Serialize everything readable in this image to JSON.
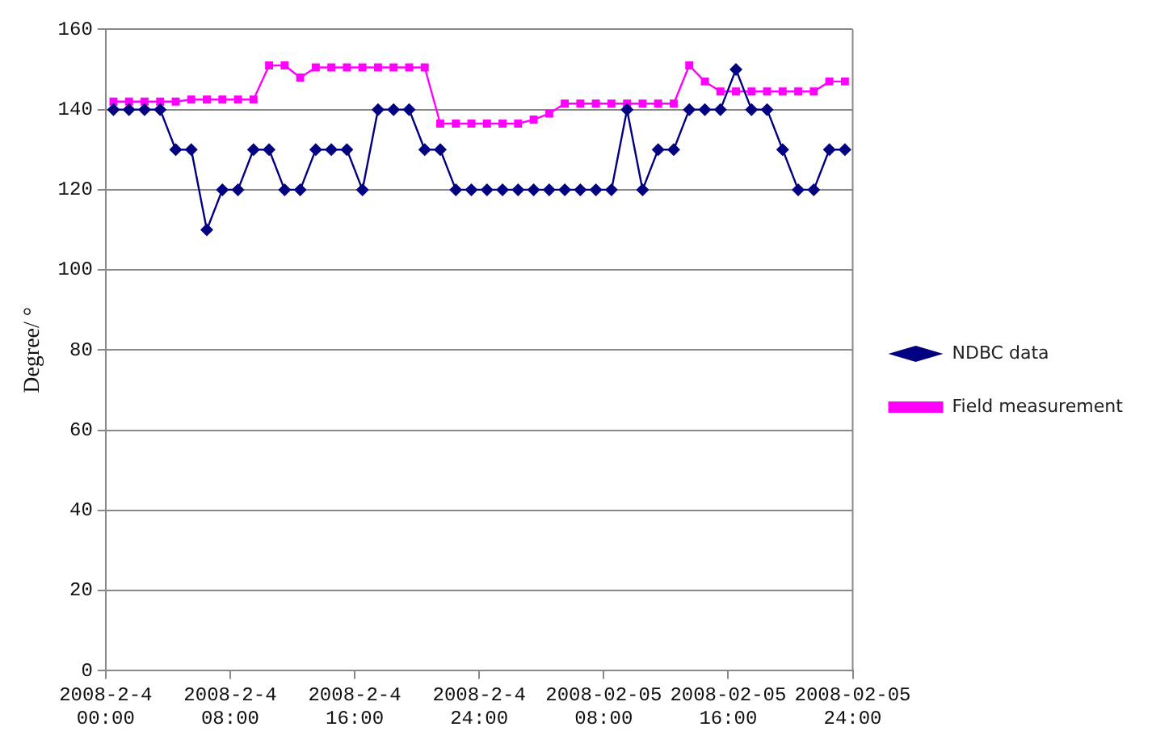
{
  "chart_data": {
    "type": "line",
    "ylabel": "Degree/ °",
    "xlim": [
      "2008-02-04T00:00",
      "2008-02-06T00:00"
    ],
    "xticks": [
      {
        "value": "2008-02-04T00:00",
        "label": "2008-2-4 00:00"
      },
      {
        "value": "2008-02-04T08:00",
        "label": "2008-2-4 08:00"
      },
      {
        "value": "2008-02-04T16:00",
        "label": "2008-2-4 16:00"
      },
      {
        "value": "2008-02-05T00:00",
        "label": "2008-2-4 24:00"
      },
      {
        "value": "2008-02-05T08:00",
        "label": "2008-02-05 08:00"
      },
      {
        "value": "2008-02-05T16:00",
        "label": "2008-02-05 16:00"
      },
      {
        "value": "2008-02-06T00:00",
        "label": "2008-02-05 24:00"
      }
    ],
    "ylim": [
      0,
      160
    ],
    "yticks": [
      0,
      20,
      40,
      60,
      80,
      100,
      120,
      140,
      160
    ],
    "grid": "y",
    "legend": "right",
    "x": [
      "2008-02-04T00:30",
      "2008-02-04T01:30",
      "2008-02-04T02:30",
      "2008-02-04T03:30",
      "2008-02-04T04:30",
      "2008-02-04T05:30",
      "2008-02-04T06:30",
      "2008-02-04T07:30",
      "2008-02-04T08:30",
      "2008-02-04T09:30",
      "2008-02-04T10:30",
      "2008-02-04T11:30",
      "2008-02-04T12:30",
      "2008-02-04T13:30",
      "2008-02-04T14:30",
      "2008-02-04T15:30",
      "2008-02-04T16:30",
      "2008-02-04T17:30",
      "2008-02-04T18:30",
      "2008-02-04T19:30",
      "2008-02-04T20:30",
      "2008-02-04T21:30",
      "2008-02-04T22:30",
      "2008-02-04T23:30",
      "2008-02-05T00:30",
      "2008-02-05T01:30",
      "2008-02-05T02:30",
      "2008-02-05T03:30",
      "2008-02-05T04:30",
      "2008-02-05T05:30",
      "2008-02-05T06:30",
      "2008-02-05T07:30",
      "2008-02-05T08:30",
      "2008-02-05T09:30",
      "2008-02-05T10:30",
      "2008-02-05T11:30",
      "2008-02-05T12:30",
      "2008-02-05T13:30",
      "2008-02-05T14:30",
      "2008-02-05T15:30",
      "2008-02-05T16:30",
      "2008-02-05T17:30",
      "2008-02-05T18:30",
      "2008-02-05T19:30",
      "2008-02-05T20:30",
      "2008-02-05T21:30",
      "2008-02-05T22:30",
      "2008-02-05T23:30"
    ],
    "series": [
      {
        "name": "NDBC data",
        "color": "#000080",
        "marker": "diamond",
        "values": [
          140,
          140,
          140,
          140,
          130,
          130,
          110,
          120,
          120,
          130,
          130,
          120,
          120,
          130,
          130,
          130,
          120,
          140,
          140,
          140,
          130,
          130,
          120,
          120,
          120,
          120,
          120,
          120,
          120,
          120,
          120,
          120,
          120,
          140,
          120,
          130,
          130,
          140,
          140,
          140,
          150,
          140,
          140,
          130,
          120,
          120,
          130,
          130
        ]
      },
      {
        "name": "Field measurement",
        "color": "#ff00ff",
        "marker": "square",
        "values": [
          142,
          142,
          142,
          142,
          142,
          142.5,
          142.5,
          142.5,
          142.5,
          142.5,
          151,
          151,
          148,
          150.5,
          150.5,
          150.5,
          150.5,
          150.5,
          150.5,
          150.5,
          150.5,
          136.5,
          136.5,
          136.5,
          136.5,
          136.5,
          136.5,
          137.5,
          139,
          141.5,
          141.5,
          141.5,
          141.5,
          141.5,
          141.5,
          141.5,
          141.5,
          151,
          147,
          144.5,
          144.5,
          144.5,
          144.5,
          144.5,
          144.5,
          144.5,
          147,
          147
        ]
      }
    ]
  }
}
